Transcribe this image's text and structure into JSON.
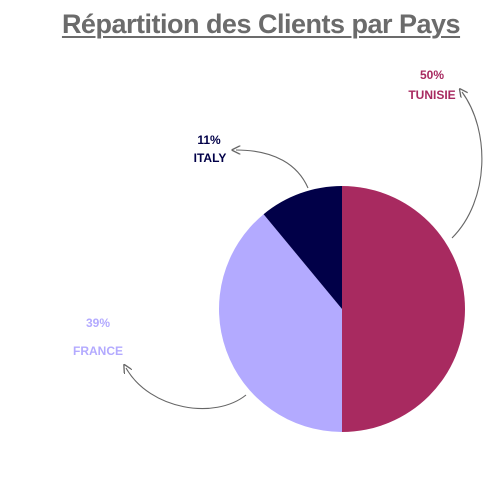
{
  "chart_data": {
    "type": "pie",
    "title": "Répartition des Clients par Pays",
    "slices": [
      {
        "label": "TUNISIE",
        "value": 50,
        "percent_label": "50%",
        "color": "#a82a60",
        "label_color": "#a82a60"
      },
      {
        "label": "FRANCE",
        "value": 39,
        "percent_label": "39%",
        "color": "#b3aaff",
        "label_color": "#b3aaff"
      },
      {
        "label": "ITALY",
        "value": 11,
        "percent_label": "11%",
        "color": "#010048",
        "label_color": "#010048"
      }
    ]
  }
}
